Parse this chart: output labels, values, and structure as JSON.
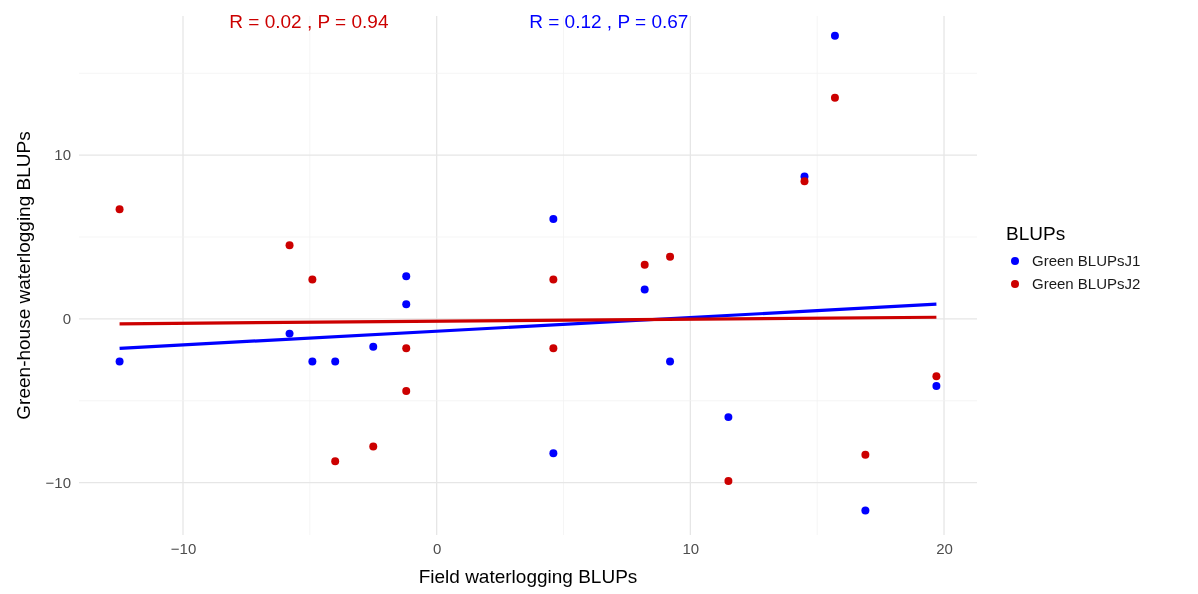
{
  "chart_data": {
    "type": "scatter",
    "xlabel": "Field waterlogging BLUPs",
    "ylabel": "Green-house waterlogging BLUPs",
    "legend_title": "BLUPs",
    "legend": "right",
    "grid": true,
    "xlim": [
      -14.1,
      21.3
    ],
    "ylim": [
      -13.2,
      18.5
    ],
    "xticks": [
      -10,
      0,
      10,
      20
    ],
    "yticks": [
      -10,
      0,
      10
    ],
    "series": [
      {
        "name": "Green BLUPsJ1",
        "color": "#0000ff",
        "marker": "circle",
        "x": [
          -12.5,
          -5.8,
          -4.9,
          -4.0,
          -2.5,
          -1.2,
          -1.2,
          4.6,
          4.6,
          8.2,
          9.2,
          11.5,
          14.5,
          15.7,
          16.9,
          19.7
        ],
        "values": [
          -2.6,
          -0.9,
          -2.6,
          -2.6,
          -1.7,
          0.9,
          2.6,
          6.1,
          -8.2,
          1.8,
          -2.6,
          -6.0,
          8.7,
          17.3,
          -11.7,
          -4.1
        ]
      },
      {
        "name": "Green BLUPsJ2",
        "color": "#cc0000",
        "marker": "circle",
        "x": [
          -12.5,
          -5.8,
          -4.9,
          -4.0,
          -2.5,
          -1.2,
          -1.2,
          4.6,
          4.6,
          8.2,
          9.2,
          11.5,
          14.5,
          15.7,
          16.9,
          19.7
        ],
        "values": [
          6.7,
          4.5,
          2.4,
          -8.7,
          -7.8,
          -1.8,
          -4.4,
          2.4,
          -1.8,
          3.3,
          3.8,
          -9.9,
          8.4,
          13.5,
          -8.3,
          -3.5
        ]
      },
      {
        "type": "line",
        "color": "#0000ff",
        "x": [
          -12.5,
          19.7
        ],
        "values": [
          -1.8,
          0.9
        ]
      },
      {
        "type": "line",
        "color": "#cc0000",
        "x": [
          -12.5,
          19.7
        ],
        "values": [
          -0.3,
          0.1
        ]
      }
    ],
    "annotations": [
      "R = 0.02 , P = 0.94",
      "R = 0.12 , P = 0.67"
    ]
  }
}
